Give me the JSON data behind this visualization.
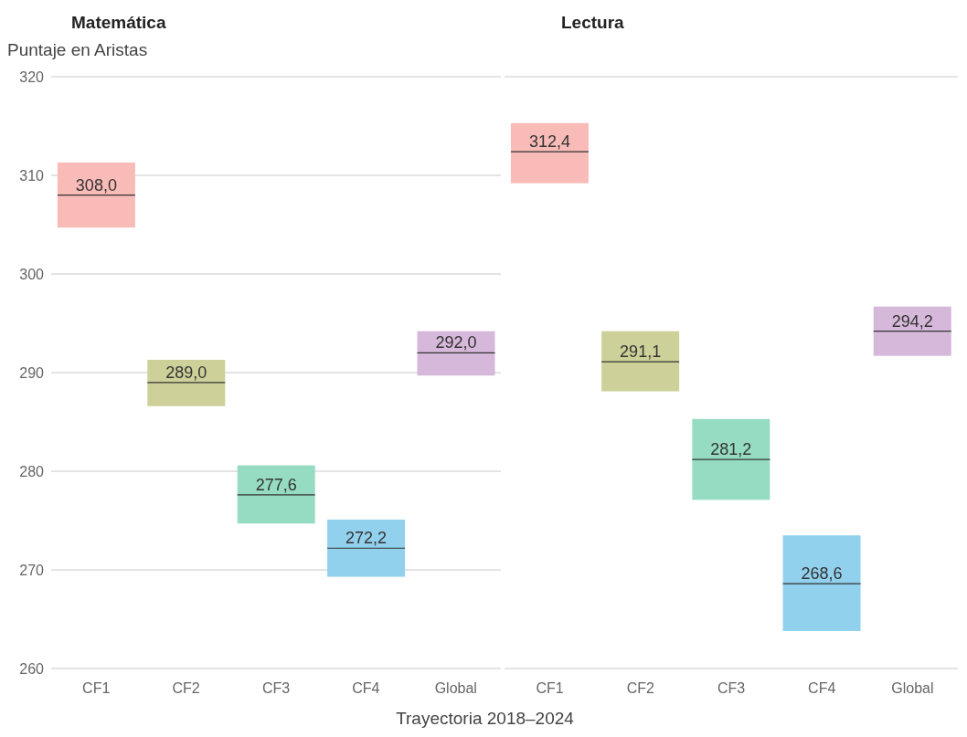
{
  "chart_data": [
    {
      "type": "box",
      "title": "Matemática",
      "ylabel": "Puntaje en Aristas",
      "categories": [
        "CF1",
        "CF2",
        "CF3",
        "CF4",
        "Global"
      ],
      "colors": [
        "#f8bbb8",
        "#cdd199",
        "#96dcc3",
        "#92d1ee",
        "#d6b8da"
      ],
      "boxes": [
        {
          "low": 304.7,
          "q1": 304.7,
          "median": 308.0,
          "q3": 311.3,
          "high": 311.3
        },
        {
          "low": 286.6,
          "q1": 286.6,
          "median": 289.0,
          "q3": 291.3,
          "high": 291.3
        },
        {
          "low": 274.7,
          "q1": 274.7,
          "median": 277.6,
          "q3": 280.6,
          "high": 280.6
        },
        {
          "low": 269.3,
          "q1": 269.3,
          "median": 272.2,
          "q3": 275.1,
          "high": 275.1
        },
        {
          "low": 289.7,
          "q1": 289.7,
          "median": 292.0,
          "q3": 294.2,
          "high": 294.2
        }
      ],
      "value_labels": [
        "308,0",
        "289,0",
        "277,6",
        "272,2",
        "292,0"
      ],
      "ylim": [
        260,
        320
      ],
      "yticks": [
        260,
        270,
        280,
        290,
        300,
        310,
        320
      ],
      "grid": "y"
    },
    {
      "type": "box",
      "title": "Lectura",
      "xlabel": "Trayectoria 2018–2024",
      "categories": [
        "CF1",
        "CF2",
        "CF3",
        "CF4",
        "Global"
      ],
      "colors": [
        "#f8bbb8",
        "#cdd199",
        "#96dcc3",
        "#92d1ee",
        "#d6b8da"
      ],
      "boxes": [
        {
          "low": 309.2,
          "q1": 309.2,
          "median": 312.4,
          "q3": 315.3,
          "high": 315.3
        },
        {
          "low": 288.1,
          "q1": 288.1,
          "median": 291.1,
          "q3": 294.2,
          "high": 294.2
        },
        {
          "low": 277.1,
          "q1": 277.1,
          "median": 281.2,
          "q3": 285.3,
          "high": 285.3
        },
        {
          "low": 263.8,
          "q1": 263.8,
          "median": 268.6,
          "q3": 273.5,
          "high": 273.5
        },
        {
          "low": 291.7,
          "q1": 291.7,
          "median": 294.2,
          "q3": 296.7,
          "high": 296.7
        }
      ],
      "value_labels": [
        "312,4",
        "291,1",
        "281,2",
        "268,6",
        "294,2"
      ],
      "ylim": [
        260,
        320
      ],
      "yticks": [
        260,
        270,
        280,
        290,
        300,
        310,
        320
      ],
      "grid": "y",
      "tick_labels": "x"
    }
  ]
}
